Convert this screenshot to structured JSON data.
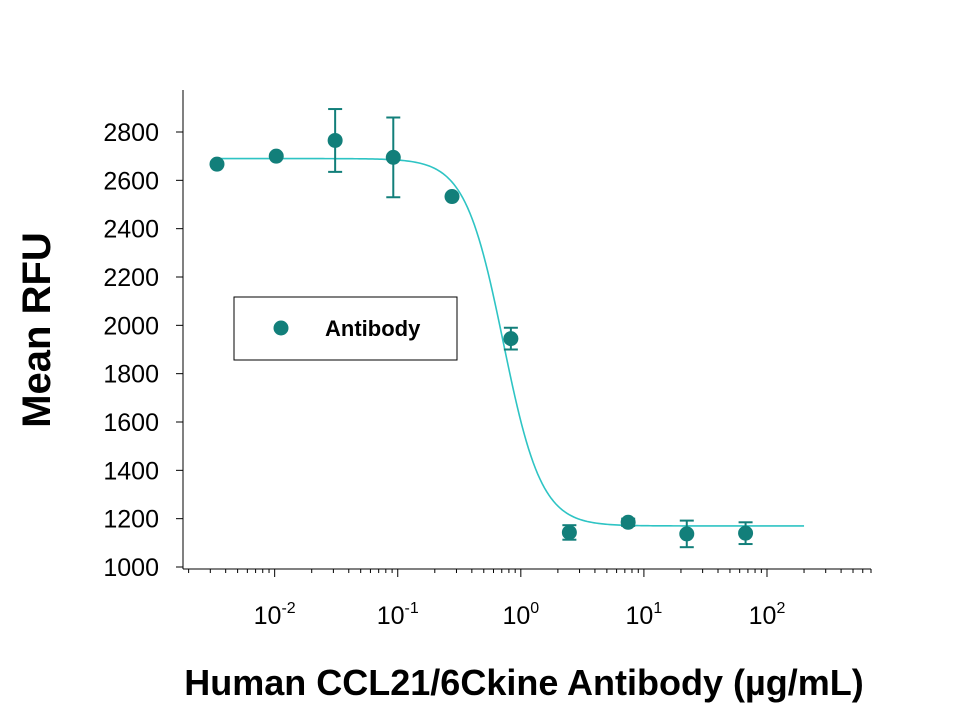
{
  "chart_data": {
    "type": "scatter",
    "title": "",
    "xlabel": "Human CCL21/6Ckine Antibody (µg/mL)",
    "ylabel": "Mean RFU",
    "xscale": "log",
    "xlim": [
      0.0018,
      700
    ],
    "ylim": [
      1000,
      2900
    ],
    "yticks": [
      1000,
      1200,
      1400,
      1600,
      1800,
      2000,
      2200,
      2400,
      2600,
      2800
    ],
    "xticks": [
      {
        "value": 0.01,
        "base": "10",
        "exp": "-2"
      },
      {
        "value": 0.1,
        "base": "10",
        "exp": "-1"
      },
      {
        "value": 1,
        "base": "10",
        "exp": "0"
      },
      {
        "value": 10,
        "base": "10",
        "exp": "1"
      },
      {
        "value": 100,
        "base": "10",
        "exp": "2"
      }
    ],
    "legend": {
      "location": "center-left",
      "entries": [
        "Antibody"
      ]
    },
    "colors": {
      "marker": "#127f7a",
      "curve": "#2ec4c4"
    },
    "series": [
      {
        "name": "Antibody",
        "x": [
          0.0034,
          0.0103,
          0.031,
          0.092,
          0.276,
          0.83,
          2.48,
          7.45,
          22.3,
          67
        ],
        "y": [
          2667,
          2700,
          2765,
          2695,
          2533,
          1945,
          1143,
          1185,
          1137,
          1140
        ],
        "err": [
          0,
          0,
          130,
          165,
          0,
          45,
          30,
          15,
          55,
          45
        ]
      }
    ],
    "fit": {
      "model": "4PL",
      "top": 2690,
      "bottom": 1170,
      "ec50": 0.72,
      "hill": 2.8,
      "x_range": [
        0.0034,
        200
      ]
    }
  }
}
